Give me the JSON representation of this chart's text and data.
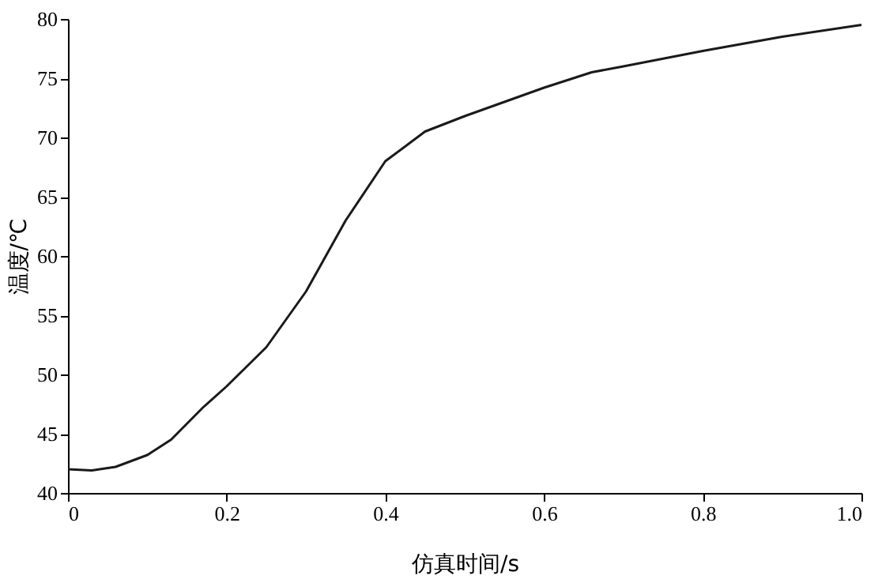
{
  "chart_data": {
    "type": "line",
    "xlabel": "仿真时间/s",
    "ylabel": "温度/℃",
    "x": [
      0,
      0.03,
      0.06,
      0.1,
      0.13,
      0.17,
      0.2,
      0.25,
      0.3,
      0.35,
      0.4,
      0.45,
      0.5,
      0.55,
      0.6,
      0.66,
      0.7,
      0.8,
      0.9,
      1.0
    ],
    "series": [
      {
        "color": "#1a1a1a",
        "values": [
          42,
          41.9,
          42.2,
          43.2,
          44.5,
          47.2,
          49,
          52.3,
          57,
          63,
          68,
          70.5,
          71.8,
          73,
          74.2,
          75.5,
          76,
          77.3,
          78.5,
          79.5
        ]
      }
    ],
    "xlim": [
      0,
      1.0
    ],
    "xticks": [
      0,
      {
        "value": 0.2,
        "label": "0.2"
      },
      {
        "value": 0.4,
        "label": "0.4"
      },
      {
        "value": 0.6,
        "label": "0.6"
      },
      {
        "value": 0.8,
        "label": "0.8"
      },
      {
        "value": 1.0,
        "label": "1.0"
      }
    ],
    "ylim": [
      40,
      80
    ],
    "yticks": [
      40,
      45,
      50,
      55,
      60,
      65,
      70,
      75,
      80
    ],
    "grid": false,
    "marker": "none",
    "line_style": "solid"
  }
}
